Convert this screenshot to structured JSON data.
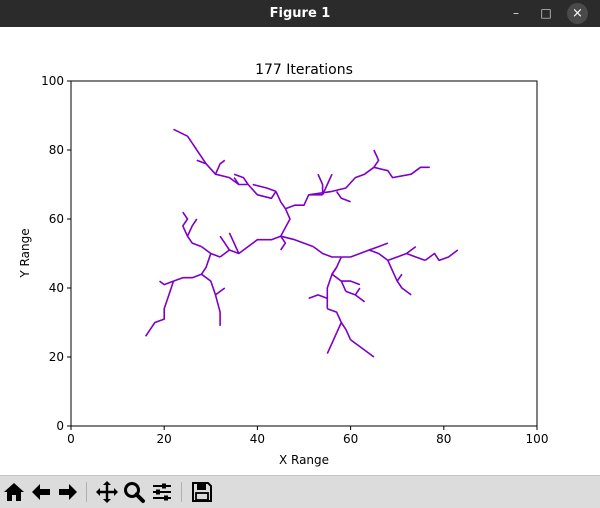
{
  "window": {
    "title": "Figure 1",
    "minimize_glyph": "–",
    "maximize_glyph": "□",
    "close_glyph": "×"
  },
  "toolbar": {
    "items": [
      {
        "name": "home-icon",
        "tooltip": "Home"
      },
      {
        "name": "back-arrow-icon",
        "tooltip": "Back"
      },
      {
        "name": "forward-arrow-icon",
        "tooltip": "Forward"
      },
      {
        "name": "pan-icon",
        "tooltip": "Pan"
      },
      {
        "name": "zoom-icon",
        "tooltip": "Zoom"
      },
      {
        "name": "subplots-icon",
        "tooltip": "Subplots"
      },
      {
        "name": "save-icon",
        "tooltip": "Save"
      }
    ]
  },
  "chart_data": {
    "type": "line",
    "title": "177 Iterations",
    "xlabel": "X Range",
    "ylabel": "Y Range",
    "xlim": [
      0,
      100
    ],
    "ylim": [
      0,
      100
    ],
    "xticks": [
      0,
      20,
      40,
      60,
      80,
      100
    ],
    "yticks": [
      0,
      20,
      40,
      60,
      80,
      100
    ],
    "grid": false,
    "line_color": "#7d00c8",
    "segments": [
      [
        [
          45,
          55
        ],
        [
          46,
          53
        ],
        [
          45,
          51
        ]
      ],
      [
        [
          45,
          55
        ],
        [
          47,
          60
        ],
        [
          46,
          63
        ]
      ],
      [
        [
          46,
          63
        ],
        [
          48,
          64
        ],
        [
          50,
          64
        ],
        [
          51,
          67
        ],
        [
          54,
          67
        ]
      ],
      [
        [
          51,
          67
        ],
        [
          56,
          68
        ],
        [
          59,
          69
        ],
        [
          61,
          72
        ],
        [
          63,
          73
        ],
        [
          65,
          75
        ]
      ],
      [
        [
          65,
          75
        ],
        [
          66,
          77
        ],
        [
          65,
          80
        ]
      ],
      [
        [
          65,
          75
        ],
        [
          68,
          74
        ],
        [
          69,
          72
        ],
        [
          73,
          73
        ],
        [
          75,
          75
        ],
        [
          77,
          75
        ]
      ],
      [
        [
          54,
          67
        ],
        [
          54,
          70
        ],
        [
          53,
          73
        ]
      ],
      [
        [
          54,
          67
        ],
        [
          55,
          70
        ],
        [
          56,
          73
        ]
      ],
      [
        [
          57,
          68
        ],
        [
          58,
          66
        ],
        [
          60,
          65
        ]
      ],
      [
        [
          46,
          63
        ],
        [
          45,
          65
        ],
        [
          44,
          68
        ]
      ],
      [
        [
          44,
          68
        ],
        [
          43,
          66
        ],
        [
          40,
          67
        ],
        [
          38,
          70
        ],
        [
          36,
          70
        ],
        [
          35,
          72
        ]
      ],
      [
        [
          38,
          70
        ],
        [
          37,
          72
        ],
        [
          35,
          73
        ]
      ],
      [
        [
          44,
          68
        ],
        [
          42,
          69
        ],
        [
          39,
          70
        ]
      ],
      [
        [
          36,
          70
        ],
        [
          34,
          72
        ],
        [
          31,
          73
        ],
        [
          29,
          76
        ],
        [
          27,
          77
        ]
      ],
      [
        [
          29,
          76
        ],
        [
          28,
          78
        ],
        [
          27,
          80
        ],
        [
          26,
          82
        ]
      ],
      [
        [
          26,
          82
        ],
        [
          25,
          84
        ],
        [
          22,
          86
        ]
      ],
      [
        [
          31,
          73
        ],
        [
          32,
          76
        ],
        [
          33,
          77
        ]
      ],
      [
        [
          45,
          55
        ],
        [
          43,
          54
        ],
        [
          40,
          54
        ],
        [
          38,
          52
        ],
        [
          36,
          50
        ],
        [
          34,
          51
        ],
        [
          32,
          49
        ]
      ],
      [
        [
          36,
          50
        ],
        [
          35,
          53
        ],
        [
          34,
          56
        ]
      ],
      [
        [
          34,
          51
        ],
        [
          33,
          53
        ],
        [
          32,
          55
        ]
      ],
      [
        [
          32,
          49
        ],
        [
          30,
          50
        ],
        [
          28,
          52
        ]
      ],
      [
        [
          30,
          50
        ],
        [
          29,
          46
        ],
        [
          28,
          44
        ],
        [
          26,
          43
        ],
        [
          24,
          43
        ],
        [
          22,
          42
        ]
      ],
      [
        [
          22,
          42
        ],
        [
          20,
          41
        ],
        [
          19,
          42
        ]
      ],
      [
        [
          22,
          42
        ],
        [
          21,
          38
        ],
        [
          20,
          34
        ],
        [
          20,
          31
        ],
        [
          18,
          30
        ],
        [
          17,
          28
        ],
        [
          16,
          26
        ]
      ],
      [
        [
          28,
          44
        ],
        [
          30,
          42
        ],
        [
          31,
          38
        ],
        [
          32,
          33
        ],
        [
          32,
          29
        ]
      ],
      [
        [
          31,
          38
        ],
        [
          32,
          39
        ],
        [
          33,
          40
        ]
      ],
      [
        [
          28,
          52
        ],
        [
          26,
          53
        ],
        [
          25,
          55
        ],
        [
          24,
          58
        ],
        [
          25,
          60
        ],
        [
          24,
          62
        ]
      ],
      [
        [
          25,
          55
        ],
        [
          26,
          58
        ],
        [
          27,
          60
        ]
      ],
      [
        [
          45,
          55
        ],
        [
          48,
          54
        ],
        [
          52,
          52
        ]
      ],
      [
        [
          52,
          52
        ],
        [
          54,
          50
        ],
        [
          56,
          49
        ],
        [
          58,
          49
        ]
      ],
      [
        [
          58,
          49
        ],
        [
          60,
          49
        ],
        [
          62,
          50
        ],
        [
          64,
          51
        ],
        [
          66,
          50
        ],
        [
          68,
          48
        ]
      ],
      [
        [
          64,
          51
        ],
        [
          66,
          52
        ],
        [
          68,
          53
        ]
      ],
      [
        [
          68,
          48
        ],
        [
          70,
          49
        ],
        [
          72,
          50
        ],
        [
          74,
          49
        ],
        [
          76,
          48
        ]
      ],
      [
        [
          72,
          50
        ],
        [
          73,
          51
        ],
        [
          74,
          52
        ]
      ],
      [
        [
          76,
          48
        ],
        [
          78,
          50
        ],
        [
          79,
          48
        ],
        [
          81,
          49
        ],
        [
          83,
          51
        ]
      ],
      [
        [
          68,
          48
        ],
        [
          69,
          45
        ],
        [
          70,
          42
        ],
        [
          71,
          40
        ],
        [
          73,
          38
        ]
      ],
      [
        [
          70,
          42
        ],
        [
          71,
          44
        ]
      ],
      [
        [
          58,
          49
        ],
        [
          57,
          46
        ],
        [
          56,
          44
        ],
        [
          58,
          42
        ],
        [
          59,
          39
        ]
      ],
      [
        [
          58,
          42
        ],
        [
          60,
          42
        ],
        [
          62,
          41
        ]
      ],
      [
        [
          57,
          46
        ],
        [
          56,
          44
        ],
        [
          55,
          40
        ],
        [
          55,
          37
        ],
        [
          55,
          34
        ]
      ],
      [
        [
          55,
          37
        ],
        [
          53,
          38
        ],
        [
          51,
          37
        ]
      ],
      [
        [
          55,
          34
        ],
        [
          57,
          33
        ],
        [
          58,
          30
        ],
        [
          57,
          27
        ]
      ],
      [
        [
          58,
          30
        ],
        [
          59,
          28
        ],
        [
          60,
          25
        ]
      ],
      [
        [
          57,
          27
        ],
        [
          56,
          24
        ],
        [
          55,
          21
        ]
      ],
      [
        [
          60,
          25
        ],
        [
          62,
          23
        ],
        [
          65,
          20
        ]
      ],
      [
        [
          59,
          39
        ],
        [
          61,
          38
        ],
        [
          63,
          36
        ]
      ],
      [
        [
          61,
          38
        ],
        [
          62,
          40
        ]
      ]
    ]
  }
}
